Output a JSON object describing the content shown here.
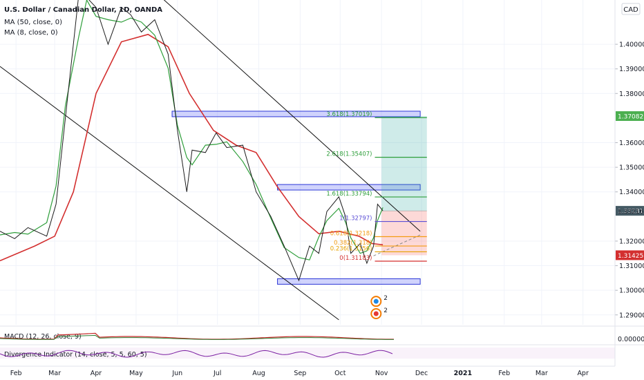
{
  "header": {
    "symbol_title": "U.S. Dollar / Canadian Dollar, 1D, OANDA",
    "indicators": [
      "MA (50, close, 0)",
      "MA (8, close, 0)"
    ],
    "currency_badge": "CAD"
  },
  "colors": {
    "price": "#1b1b1b",
    "ma50": "#d32f2f",
    "ma8": "#2e9e3a",
    "zone_fill": "rgba(120,130,245,0.35)",
    "zone_stroke": "#2c36d6",
    "target_fill": "rgba(38,166,154,0.22)",
    "stop_fill": "rgba(244,67,54,0.20)",
    "macd_line": "#c62828",
    "macd_signal": "#2e7d32",
    "divergence": "#7b1fa2",
    "price_badge": "#4caf50",
    "last_badge": "#455a64",
    "stop_badge": "#d32f2f"
  },
  "chart_data": {
    "type": "line",
    "title": "U.S. Dollar / Canadian Dollar, 1D, OANDA",
    "x_labels": [
      "Feb",
      "Mar",
      "Apr",
      "May",
      "Jun",
      "Jul",
      "Aug",
      "Sep",
      "Oct",
      "Nov",
      "Dec",
      "2021",
      "Feb",
      "Mar",
      "Apr"
    ],
    "y_ticks": [
      "1.40000",
      "1.39000",
      "1.38000",
      "1.36000",
      "1.35000",
      "1.34000",
      "1.32000",
      "1.31000",
      "1.30000",
      "1.29000"
    ],
    "ylim": [
      1.286,
      1.418
    ],
    "price_labels": [
      {
        "value": 1.37082,
        "label": "1.37082",
        "style": "green"
      },
      {
        "value": 1.33231,
        "label": "1.33231",
        "style": "dark"
      },
      {
        "value": 1.33216,
        "label": "1.33216",
        "style": "plain"
      },
      {
        "value": 1.31425,
        "label": "1.31425",
        "style": "red"
      }
    ],
    "price_series": [
      {
        "date": "2020-01-20",
        "close": 1.324
      },
      {
        "date": "2020-01-31",
        "close": 1.321
      },
      {
        "date": "2020-02-10",
        "close": 1.3255
      },
      {
        "date": "2020-02-24",
        "close": 1.322
      },
      {
        "date": "2020-03-02",
        "close": 1.335
      },
      {
        "date": "2020-03-09",
        "close": 1.37
      },
      {
        "date": "2020-03-19",
        "close": 1.42
      },
      {
        "date": "2020-03-25",
        "close": 1.419
      },
      {
        "date": "2020-04-01",
        "close": 1.415
      },
      {
        "date": "2020-04-10",
        "close": 1.4
      },
      {
        "date": "2020-04-20",
        "close": 1.415
      },
      {
        "date": "2020-04-27",
        "close": 1.412
      },
      {
        "date": "2020-05-05",
        "close": 1.405
      },
      {
        "date": "2020-05-15",
        "close": 1.41
      },
      {
        "date": "2020-05-25",
        "close": 1.396
      },
      {
        "date": "2020-06-01",
        "close": 1.365
      },
      {
        "date": "2020-06-08",
        "close": 1.34
      },
      {
        "date": "2020-06-12",
        "close": 1.357
      },
      {
        "date": "2020-06-22",
        "close": 1.356
      },
      {
        "date": "2020-06-30",
        "close": 1.364
      },
      {
        "date": "2020-07-08",
        "close": 1.358
      },
      {
        "date": "2020-07-20",
        "close": 1.359
      },
      {
        "date": "2020-07-30",
        "close": 1.34
      },
      {
        "date": "2020-08-10",
        "close": 1.33
      },
      {
        "date": "2020-08-20",
        "close": 1.318
      },
      {
        "date": "2020-08-31",
        "close": 1.304
      },
      {
        "date": "2020-09-08",
        "close": 1.318
      },
      {
        "date": "2020-09-15",
        "close": 1.315
      },
      {
        "date": "2020-09-21",
        "close": 1.332
      },
      {
        "date": "2020-09-30",
        "close": 1.338
      },
      {
        "date": "2020-10-05",
        "close": 1.33
      },
      {
        "date": "2020-10-09",
        "close": 1.315
      },
      {
        "date": "2020-10-16",
        "close": 1.319
      },
      {
        "date": "2020-10-21",
        "close": 1.311
      },
      {
        "date": "2020-10-26",
        "close": 1.318
      },
      {
        "date": "2020-10-29",
        "close": 1.335
      },
      {
        "date": "2020-11-02",
        "close": 1.3323
      }
    ],
    "ma50_series": [
      {
        "date": "2020-01-20",
        "value": 1.312
      },
      {
        "date": "2020-02-15",
        "value": 1.318
      },
      {
        "date": "2020-03-01",
        "value": 1.322
      },
      {
        "date": "2020-03-15",
        "value": 1.34
      },
      {
        "date": "2020-04-01",
        "value": 1.38
      },
      {
        "date": "2020-04-20",
        "value": 1.401
      },
      {
        "date": "2020-05-10",
        "value": 1.404
      },
      {
        "date": "2020-05-25",
        "value": 1.399
      },
      {
        "date": "2020-06-10",
        "value": 1.38
      },
      {
        "date": "2020-06-28",
        "value": 1.365
      },
      {
        "date": "2020-07-15",
        "value": 1.359
      },
      {
        "date": "2020-07-30",
        "value": 1.356
      },
      {
        "date": "2020-08-15",
        "value": 1.342
      },
      {
        "date": "2020-08-31",
        "value": 1.33
      },
      {
        "date": "2020-09-15",
        "value": 1.323
      },
      {
        "date": "2020-09-30",
        "value": 1.324
      },
      {
        "date": "2020-10-15",
        "value": 1.322
      },
      {
        "date": "2020-10-25",
        "value": 1.319
      },
      {
        "date": "2020-11-02",
        "value": 1.3185
      }
    ],
    "trendlines": [
      {
        "from": {
          "date": "2020-01-20",
          "value": 1.391
        },
        "to": {
          "date": "2020-09-30",
          "value": 1.288
        }
      },
      {
        "from": {
          "date": "2020-05-20",
          "value": 1.419
        },
        "to": {
          "date": "2020-11-30",
          "value": 1.324
        }
      },
      {
        "from": {
          "date": "2020-10-26",
          "value": 1.314
        },
        "to": {
          "date": "2020-11-30",
          "value": 1.3225
        },
        "dashed": true
      }
    ],
    "zones": [
      {
        "from": "2020-05-28",
        "to": "2020-11-30",
        "top": 1.3728,
        "bottom": 1.371
      },
      {
        "from": "2020-08-15",
        "to": "2020-11-30",
        "top": 1.343,
        "bottom": 1.3418
      },
      {
        "from": "2020-08-15",
        "to": "2020-11-30",
        "top": 1.3047,
        "bottom": 1.3033
      }
    ],
    "position_box": {
      "from": "2020-11-01",
      "to": "2020-12-05",
      "entry": 1.3323,
      "target": 1.37082,
      "stop": 1.31425
    },
    "fibonacci": [
      {
        "level": "3.618",
        "price": 1.37019,
        "label": "3.618(1.37019)",
        "color": "#2e9e3a"
      },
      {
        "level": "2.618",
        "price": 1.35407,
        "label": "2.618(1.35407)",
        "color": "#2e9e3a"
      },
      {
        "level": "1.618",
        "price": 1.33794,
        "label": "1.618(1.33794)",
        "color": "#2e9e3a"
      },
      {
        "level": "1",
        "price": 1.32797,
        "label": "1(1.32797)",
        "color": "#5c4fd6"
      },
      {
        "level": "0.618",
        "price": 1.32181,
        "label": "0.618(1.3218)",
        "color": "#f39c12"
      },
      {
        "level": "0.382",
        "price": 1.318,
        "label": "0.382(1.318)",
        "color": "#f39c12"
      },
      {
        "level": "0.236",
        "price": 1.31565,
        "label": "0.236(1.3156)",
        "color": "#e6a100"
      },
      {
        "level": "0",
        "price": 1.31183,
        "label": "0(1.31183)",
        "color": "#d32f2f"
      }
    ],
    "event_markers": [
      {
        "date": "2020-10-30",
        "value": 1.2955,
        "label": "2"
      },
      {
        "date": "2020-10-30",
        "value": 1.2905,
        "label": "2"
      }
    ],
    "lower_panes": [
      {
        "name": "MACD (12, 26, close, 9)",
        "type": "macd",
        "right_label": "0.00000"
      },
      {
        "name": "Divergence Indicator (14, close, 5, 5, 60, 5)",
        "type": "oscillator",
        "right_label": ""
      }
    ]
  }
}
